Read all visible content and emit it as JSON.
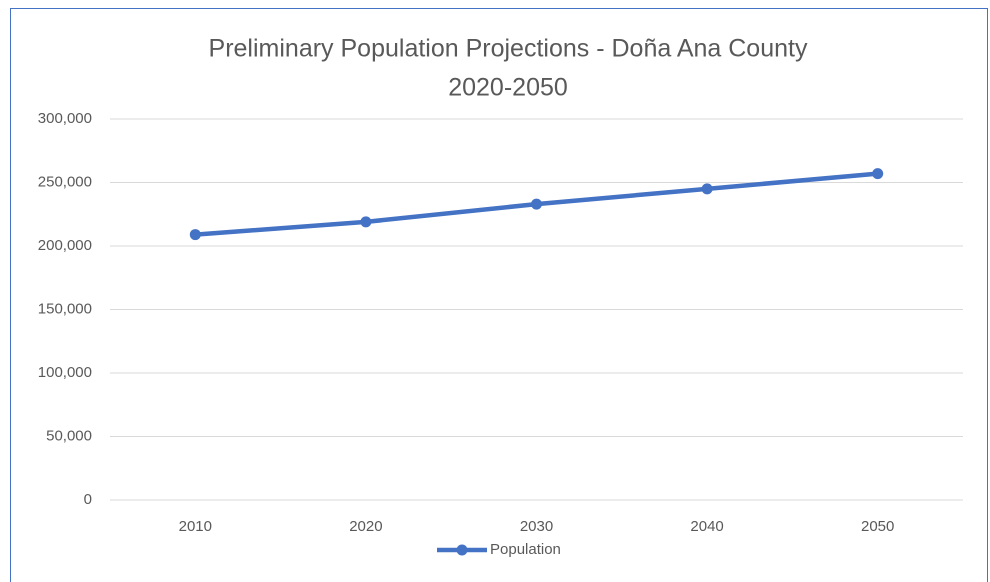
{
  "chart_data": {
    "type": "line",
    "title": "Preliminary Population Projections - Doña Ana County",
    "subtitle": "2020-2050",
    "categories": [
      "2010",
      "2020",
      "2030",
      "2040",
      "2050"
    ],
    "series": [
      {
        "name": "Population",
        "color": "#4472c4",
        "values": [
          209000,
          219000,
          233000,
          245000,
          257000
        ]
      }
    ],
    "ylim": [
      0,
      300000
    ],
    "yticks": [
      0,
      {
        "value": 50000,
        "label": "50,000"
      },
      {
        "value": 100000,
        "label": "100,000"
      },
      {
        "value": 150000,
        "label": "150,000"
      },
      {
        "value": 200000,
        "label": "200,000"
      },
      {
        "value": 250000,
        "label": "250,000"
      },
      {
        "value": 300000,
        "label": "300,000"
      }
    ],
    "grid": true,
    "legend": "bottom"
  }
}
